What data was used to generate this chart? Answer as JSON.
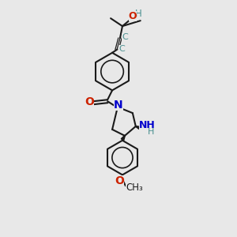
{
  "bg_color": "#e8e8e8",
  "bond_color": "#1a1a1a",
  "teal": "#4a9090",
  "red": "#cc2200",
  "blue": "#0000cc",
  "figsize": [
    3.0,
    3.0
  ],
  "dpi": 100,
  "top_c_label": "C",
  "bot_c_label": "C",
  "oh_h": "H",
  "oh_o": "O",
  "n_label": "N",
  "o_label": "O",
  "nh_label": "NH",
  "h_label": "H",
  "meo_label": "O",
  "me_label": "CH₃"
}
